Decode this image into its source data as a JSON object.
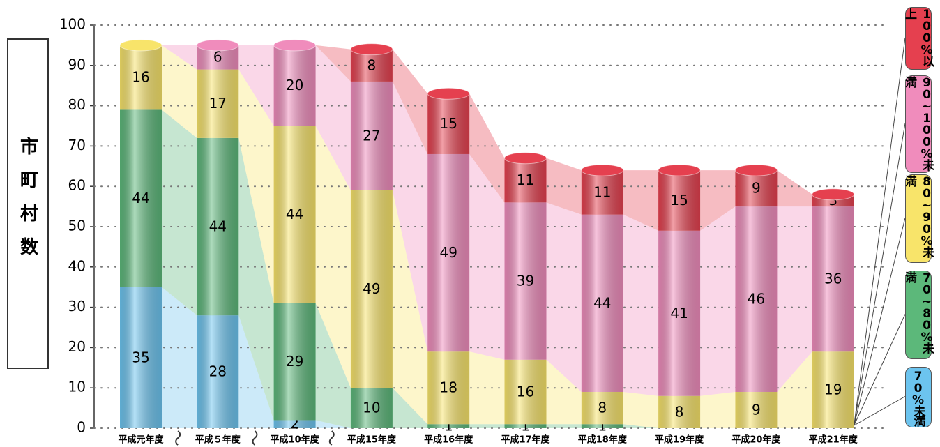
{
  "chart_data": {
    "type": "stacked_bar",
    "y_label": "市町村数",
    "categories": [
      "平成元年度",
      "平成５年度",
      "平成10年度",
      "平成15年度",
      "平成16年度",
      "平成17年度",
      "平成18年度",
      "平成19年度",
      "平成20年度",
      "平成21年度"
    ],
    "series": [
      {
        "name": "70%未満",
        "color": "#6cc4ef",
        "values": [
          35,
          28,
          2,
          0,
          0,
          0,
          0,
          0,
          0,
          0
        ]
      },
      {
        "name": "70~80%未満",
        "color": "#5cb87a",
        "values": [
          44,
          44,
          29,
          10,
          1,
          1,
          1,
          0,
          0,
          0
        ]
      },
      {
        "name": "80~90%未満",
        "color": "#f8e46a",
        "values": [
          16,
          17,
          44,
          49,
          18,
          16,
          8,
          8,
          9,
          19
        ]
      },
      {
        "name": "90~100%未満",
        "color": "#f08cbc",
        "values": [
          0,
          6,
          20,
          27,
          49,
          39,
          44,
          41,
          46,
          36
        ]
      },
      {
        "name": "100%以上",
        "color": "#e5404f",
        "values": [
          0,
          0,
          0,
          8,
          15,
          11,
          11,
          15,
          9,
          3
        ]
      }
    ],
    "ylim": [
      0,
      100
    ],
    "yticks": [
      0,
      10,
      20,
      30,
      40,
      50,
      60,
      70,
      80,
      90,
      100
    ],
    "grid": true
  }
}
